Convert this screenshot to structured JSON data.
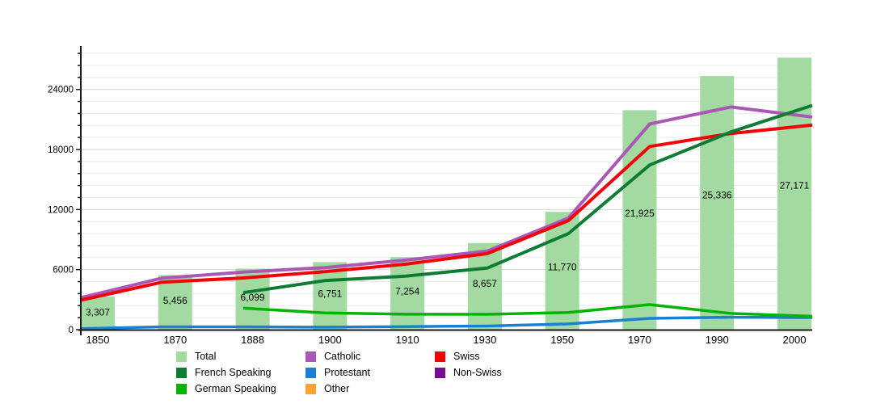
{
  "chart_data": {
    "type": "bar+line",
    "title": "",
    "categories": [
      "1850",
      "1870",
      "1888",
      "1900",
      "1910",
      "1930",
      "1950",
      "1970",
      "1990",
      "2000"
    ],
    "y_axis": {
      "tick_values": [
        0,
        6000,
        12000,
        18000,
        24000
      ],
      "tick_labels": [
        "0",
        "6000",
        "12000",
        "18000",
        "24000"
      ],
      "minor_grid_step": 1200,
      "max_value": 28330,
      "grid": "on"
    },
    "bar_series": {
      "name": "Total",
      "color": "#a2daa2",
      "values": [
        3307,
        5456,
        6099,
        6751,
        7254,
        8657,
        11770,
        21925,
        25336,
        27171
      ],
      "value_labels": [
        "3,307",
        "5,456",
        "6,099",
        "6,751",
        "7,254",
        "8,657",
        "11,770",
        "21,925",
        "25,336",
        "27,171"
      ]
    },
    "line_series": [
      {
        "name": "French Speaking",
        "color": "#0e7d33",
        "values": [
          null,
          null,
          3700,
          4900,
          5350,
          6150,
          9600,
          16450,
          19750,
          22400
        ]
      },
      {
        "name": "German Speaking",
        "color": "#04b404",
        "values": [
          null,
          null,
          2150,
          1680,
          1540,
          1530,
          1720,
          2500,
          1620,
          1330
        ]
      },
      {
        "name": "Catholic",
        "color": "#ab57b5",
        "values": [
          3200,
          5150,
          5750,
          6200,
          6950,
          7850,
          11150,
          20550,
          22250,
          21250
        ]
      },
      {
        "name": "Protestant",
        "color": "#1a80d2",
        "values": [
          100,
          280,
          280,
          250,
          310,
          360,
          570,
          1130,
          1240,
          1210
        ]
      },
      {
        "name": "Other",
        "color": "#f9a331",
        "values": null
      },
      {
        "name": "Swiss",
        "color": "#f40008",
        "values": [
          2950,
          4750,
          5170,
          5800,
          6550,
          7600,
          10900,
          18300,
          19600,
          20450
        ]
      },
      {
        "name": "Non-Swiss",
        "color": "#780d94",
        "values": null
      }
    ],
    "legend": {
      "position": "bottom",
      "columns": [
        [
          "Total",
          "French Speaking",
          "German Speaking"
        ],
        [
          "Catholic",
          "Protestant",
          "Other"
        ],
        [
          "Swiss",
          "Non-Swiss"
        ]
      ]
    }
  }
}
